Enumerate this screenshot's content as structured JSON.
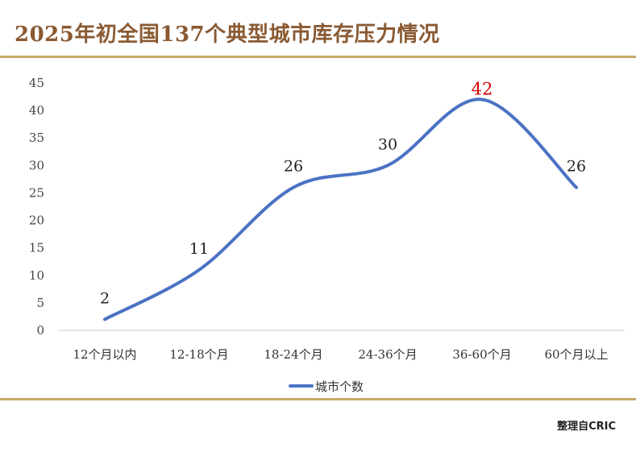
{
  "header": {
    "title": "2025年初全国137个典型城市库存压力情况"
  },
  "footer": {
    "source": "整理自CRIC"
  },
  "colors": {
    "line": "#4a72c4",
    "highlight_label": "#d40000",
    "rule": "#c7a96a",
    "title": "#8a5a33"
  },
  "chart_data": {
    "type": "line",
    "categories": [
      "12个月以内",
      "12-18个月",
      "18-24个月",
      "24-36个月",
      "36-60个月",
      "60个月以上"
    ],
    "series": [
      {
        "name": "城市个数",
        "values": [
          2,
          11,
          26,
          30,
          42,
          26
        ]
      }
    ],
    "ylim": [
      0,
      45
    ],
    "yticks": [
      0,
      5,
      10,
      15,
      20,
      25,
      30,
      35,
      40,
      45
    ],
    "highlight_index": 4,
    "legend": "bottom",
    "grid": false,
    "smooth": true
  }
}
